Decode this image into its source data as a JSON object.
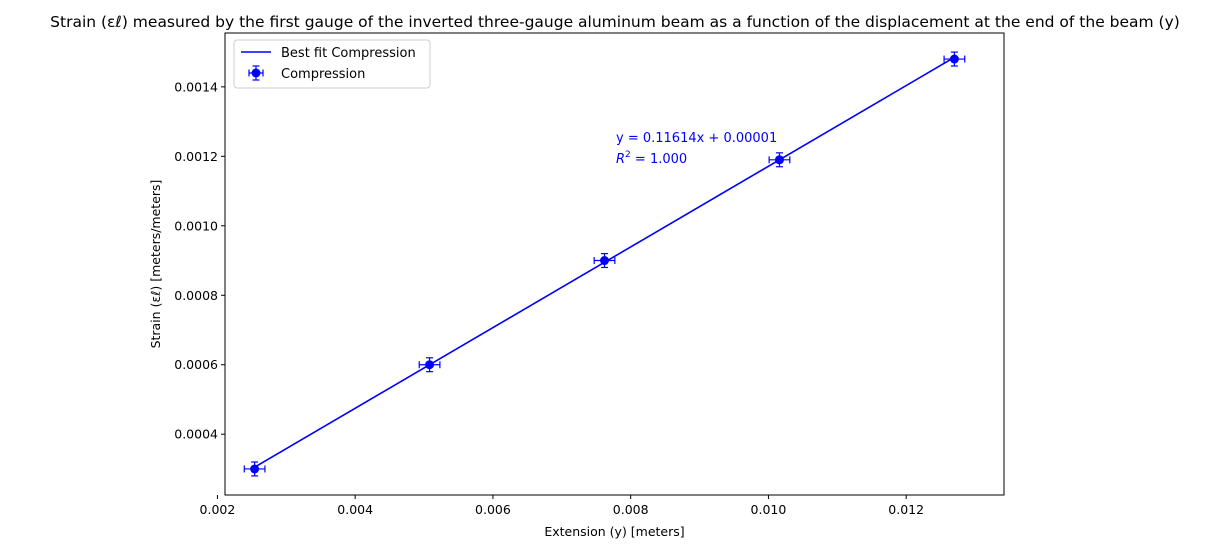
{
  "chart_data": {
    "type": "scatter",
    "title": "Strain (εℓ) measured by the first gauge of the inverted three-gauge aluminum beam as a function of the displacement at the end of the beam (y)",
    "xlabel": "Extension (y) [meters]",
    "ylabel": "Strain (εℓ) [meters/meters]",
    "xlim": [
      0.00211,
      0.01342
    ],
    "ylim": [
      0.000225,
      0.001555
    ],
    "xticks": [
      0.002,
      0.004,
      0.006,
      0.008,
      0.01,
      0.012
    ],
    "xtick_labels": [
      "0.002",
      "0.004",
      "0.006",
      "0.008",
      "0.010",
      "0.012"
    ],
    "yticks": [
      0.0004,
      0.0006,
      0.0008,
      0.001,
      0.0012,
      0.0014
    ],
    "ytick_labels": [
      "0.0004",
      "0.0006",
      "0.0008",
      "0.0010",
      "0.0012",
      "0.0014"
    ],
    "grid": false,
    "legend_position": "top-left",
    "series": [
      {
        "name": "Compression",
        "kind": "errorbar",
        "color": "#0000ff",
        "x": [
          0.00254,
          0.00508,
          0.00762,
          0.01016,
          0.0127
        ],
        "y": [
          0.0003,
          0.0006,
          0.0009,
          0.00119,
          0.00148
        ],
        "x_err": [
          0.00015,
          0.00015,
          0.00015,
          0.00015,
          0.00015
        ],
        "y_err": [
          2e-05,
          2e-05,
          2e-05,
          2e-05,
          2e-05
        ]
      },
      {
        "name": "Best fit Compression",
        "kind": "line",
        "color": "#0000ff",
        "slope": 0.11614,
        "intercept": 1e-05,
        "x_range": [
          0.00254,
          0.0127
        ]
      }
    ],
    "annotation": {
      "equation": "y = 0.11614x + 0.00001",
      "r2_label": "R",
      "r2_sup": "2",
      "r2_value": " = 1.000",
      "color": "#0000ff"
    }
  }
}
